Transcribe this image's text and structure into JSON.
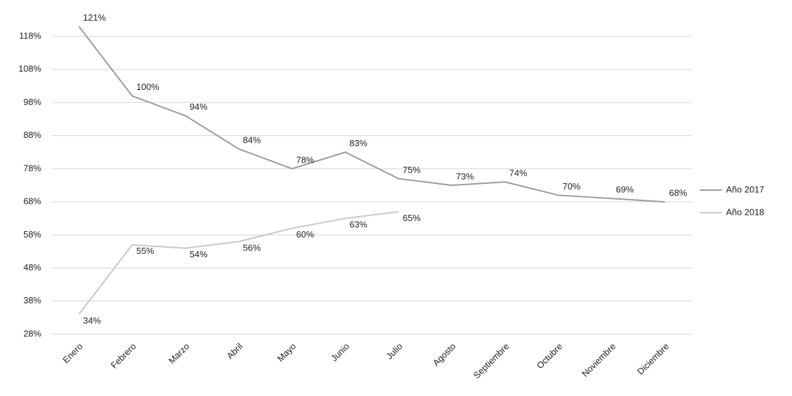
{
  "chart_data": {
    "type": "line",
    "categories": [
      "Enero",
      "Febrero",
      "Marzo",
      "Abril",
      "Mayo",
      "Junio",
      "Julio",
      "Agosto",
      "Septiembre",
      "Octubre",
      "Noviembre",
      "Diciembre"
    ],
    "series": [
      {
        "name": "Año 2017",
        "color": "#9a9a9a",
        "values": [
          121,
          100,
          94,
          84,
          78,
          83,
          75,
          73,
          74,
          70,
          69,
          68
        ],
        "value_labels": [
          "121%",
          "100%",
          "94%",
          "84%",
          "78%",
          "83%",
          "75%",
          "73%",
          "74%",
          "70%",
          "69%",
          "68%"
        ]
      },
      {
        "name": "Año 2018",
        "color": "#c8c8c8",
        "values": [
          34,
          55,
          54,
          56,
          60,
          63,
          65,
          null,
          null,
          null,
          null,
          null
        ],
        "value_labels": [
          "34%",
          "55%",
          "54%",
          "56%",
          "60%",
          "63%",
          "65%",
          null,
          null,
          null,
          null,
          null
        ]
      }
    ],
    "ylim": [
      28,
      124
    ],
    "yticks": [
      {
        "value": 28,
        "label": "28%"
      },
      {
        "value": 38,
        "label": "38%"
      },
      {
        "value": 48,
        "label": "48%"
      },
      {
        "value": 58,
        "label": "58%"
      },
      {
        "value": 68,
        "label": "68%"
      },
      {
        "value": 78,
        "label": "78%"
      },
      {
        "value": 88,
        "label": "88%"
      },
      {
        "value": 98,
        "label": "98%"
      },
      {
        "value": 108,
        "label": "108%"
      },
      {
        "value": 118,
        "label": "118%"
      }
    ],
    "grid": true,
    "legend": "right"
  }
}
